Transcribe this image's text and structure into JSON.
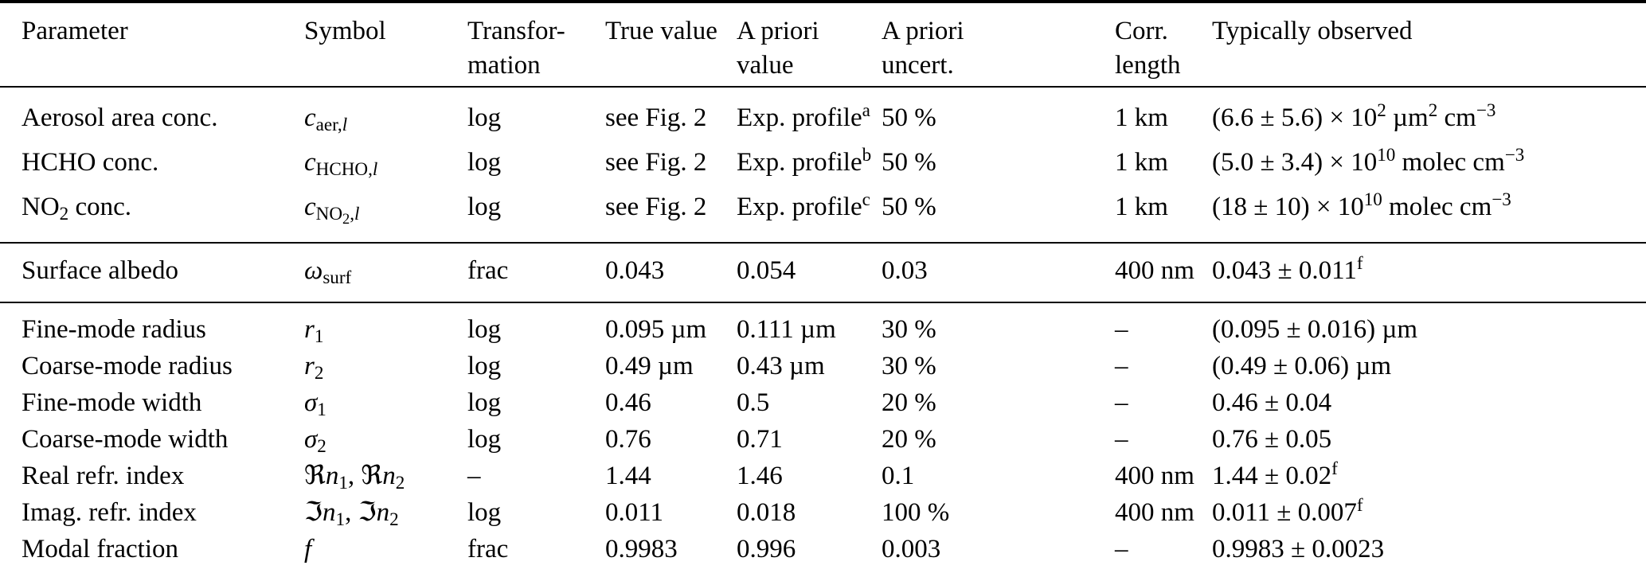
{
  "page": {
    "background_color": "#ffffff",
    "text_color": "#000000",
    "rule_color": "#000000"
  },
  "table": {
    "headers": [
      {
        "id": "parameter",
        "html": "Parameter"
      },
      {
        "id": "symbol",
        "html": "Symbol"
      },
      {
        "id": "transformation",
        "html": "Transfor-<br>mation"
      },
      {
        "id": "true-value",
        "html": "True value"
      },
      {
        "id": "a-priori-value",
        "html": "A priori<br>value"
      },
      {
        "id": "a-priori-uncert",
        "html": "A priori<br>uncert."
      },
      {
        "id": "corr-length",
        "html": "Corr.<br>length"
      },
      {
        "id": "typically-observed",
        "html": "Typically observed"
      }
    ],
    "groups": [
      {
        "name": "concentrations",
        "rows": [
          {
            "cells": [
              "Aerosol area conc.",
              "<i>c</i><sub>aer,<i>l</i></sub>",
              "log",
              "see Fig. 2",
              "Exp. profile<sup>a</sup>",
              "50 %",
              "1 km",
              "(6.6 ± 5.6) × 10<sup>2</sup> µm<sup>2</sup> cm<sup>−3</sup>"
            ]
          },
          {
            "cells": [
              "HCHO conc.",
              "<i>c</i><sub>HCHO,<i>l</i></sub>",
              "log",
              "see Fig. 2",
              "Exp. profile<sup>b</sup>",
              "50 %",
              "1 km",
              "(5.0 ± 3.4) × 10<sup>10</sup> molec cm<sup>−3</sup>"
            ]
          },
          {
            "cells": [
              "NO<sub>2</sub> conc.",
              "<i>c</i><sub>NO<sub>2</sub>,<i>l</i></sub>",
              "log",
              "see Fig. 2",
              "Exp. profile<sup>c</sup>",
              "50 %",
              "1 km",
              "(18 ± 10) × 10<sup>10</sup> molec cm<sup>−3</sup>"
            ]
          }
        ]
      },
      {
        "name": "surface",
        "rows": [
          {
            "cells": [
              "Surface albedo",
              "<i>ω</i><sub>surf</sub>",
              "frac",
              "0.043",
              "0.054",
              "0.03",
              "400 nm",
              "0.043 ± 0.011<sup>f</sup>"
            ]
          }
        ]
      },
      {
        "name": "aerosol-microphysics",
        "rows": [
          {
            "cells": [
              "Fine-mode radius",
              "<i>r</i><sub>1</sub>",
              "log",
              "0.095 µm",
              "0.111 µm",
              "30 %",
              "–",
              "(0.095 ± 0.016) µm"
            ]
          },
          {
            "cells": [
              "Coarse-mode radius",
              "<i>r</i><sub>2</sub>",
              "log",
              "0.49 µm",
              "0.43 µm",
              "30 %",
              "–",
              "(0.49 ± 0.06) µm"
            ]
          },
          {
            "cells": [
              "Fine-mode width",
              "<i>σ</i><sub>1</sub>",
              "log",
              "0.46",
              "0.5",
              "20 %",
              "–",
              "0.46 ± 0.04"
            ]
          },
          {
            "cells": [
              "Coarse-mode width",
              "<i>σ</i><sub>2</sub>",
              "log",
              "0.76",
              "0.71",
              "20 %",
              "–",
              "0.76 ± 0.05"
            ]
          },
          {
            "cells": [
              "Real refr. index",
              "ℜ<i>n</i><sub>1</sub>, ℜ<i>n</i><sub>2</sub>",
              "–",
              "1.44",
              "1.46",
              "0.1",
              "400 nm",
              "1.44 ± 0.02<sup>f</sup>"
            ]
          },
          {
            "cells": [
              "Imag. refr. index",
              "ℑ<i>n</i><sub>1</sub>, ℑ<i>n</i><sub>2</sub>",
              "log",
              "0.011",
              "0.018",
              "100 %",
              "400 nm",
              "0.011 ± 0.007<sup>f</sup>"
            ]
          },
          {
            "cells": [
              "Modal fraction",
              "<i>f</i>",
              "frac",
              "0.9983",
              "0.996",
              "0.003",
              "–",
              "0.9983 ± 0.0023"
            ]
          }
        ]
      }
    ]
  }
}
